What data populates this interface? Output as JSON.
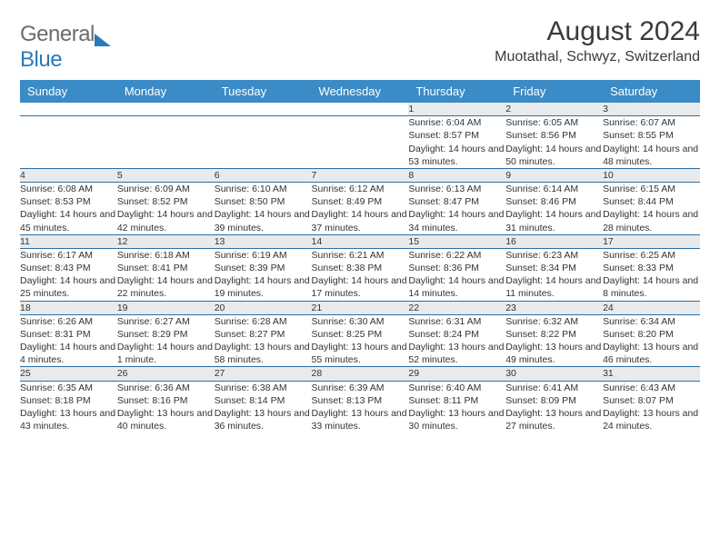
{
  "brand": {
    "part1": "General",
    "part2": "Blue"
  },
  "title": "August 2024",
  "subtitle": "Muotathal, Schwyz, Switzerland",
  "weekdays": [
    "Sunday",
    "Monday",
    "Tuesday",
    "Wednesday",
    "Thursday",
    "Friday",
    "Saturday"
  ],
  "colors": {
    "header_bg": "#3b8bc6",
    "header_text": "#ffffff",
    "daynum_bg": "#e9eaeb",
    "cell_border": "#2a6fa3",
    "body_text": "#333333",
    "title_text": "#3a3a3a",
    "logo_gray": "#6b6b6b",
    "logo_blue": "#2a7ab8",
    "background": "#ffffff"
  },
  "typography": {
    "title_fontsize": 30,
    "subtitle_fontsize": 16,
    "weekday_fontsize": 13,
    "daynum_fontsize": 12,
    "cell_fontsize": 10.5,
    "logo_fontsize": 24
  },
  "layout": {
    "columns": 7,
    "rows": 5,
    "first_day_column": 4
  },
  "days": [
    {
      "n": 1,
      "sunrise": "6:04 AM",
      "sunset": "8:57 PM",
      "daylight": "14 hours and 53 minutes."
    },
    {
      "n": 2,
      "sunrise": "6:05 AM",
      "sunset": "8:56 PM",
      "daylight": "14 hours and 50 minutes."
    },
    {
      "n": 3,
      "sunrise": "6:07 AM",
      "sunset": "8:55 PM",
      "daylight": "14 hours and 48 minutes."
    },
    {
      "n": 4,
      "sunrise": "6:08 AM",
      "sunset": "8:53 PM",
      "daylight": "14 hours and 45 minutes."
    },
    {
      "n": 5,
      "sunrise": "6:09 AM",
      "sunset": "8:52 PM",
      "daylight": "14 hours and 42 minutes."
    },
    {
      "n": 6,
      "sunrise": "6:10 AM",
      "sunset": "8:50 PM",
      "daylight": "14 hours and 39 minutes."
    },
    {
      "n": 7,
      "sunrise": "6:12 AM",
      "sunset": "8:49 PM",
      "daylight": "14 hours and 37 minutes."
    },
    {
      "n": 8,
      "sunrise": "6:13 AM",
      "sunset": "8:47 PM",
      "daylight": "14 hours and 34 minutes."
    },
    {
      "n": 9,
      "sunrise": "6:14 AM",
      "sunset": "8:46 PM",
      "daylight": "14 hours and 31 minutes."
    },
    {
      "n": 10,
      "sunrise": "6:15 AM",
      "sunset": "8:44 PM",
      "daylight": "14 hours and 28 minutes."
    },
    {
      "n": 11,
      "sunrise": "6:17 AM",
      "sunset": "8:43 PM",
      "daylight": "14 hours and 25 minutes."
    },
    {
      "n": 12,
      "sunrise": "6:18 AM",
      "sunset": "8:41 PM",
      "daylight": "14 hours and 22 minutes."
    },
    {
      "n": 13,
      "sunrise": "6:19 AM",
      "sunset": "8:39 PM",
      "daylight": "14 hours and 19 minutes."
    },
    {
      "n": 14,
      "sunrise": "6:21 AM",
      "sunset": "8:38 PM",
      "daylight": "14 hours and 17 minutes."
    },
    {
      "n": 15,
      "sunrise": "6:22 AM",
      "sunset": "8:36 PM",
      "daylight": "14 hours and 14 minutes."
    },
    {
      "n": 16,
      "sunrise": "6:23 AM",
      "sunset": "8:34 PM",
      "daylight": "14 hours and 11 minutes."
    },
    {
      "n": 17,
      "sunrise": "6:25 AM",
      "sunset": "8:33 PM",
      "daylight": "14 hours and 8 minutes."
    },
    {
      "n": 18,
      "sunrise": "6:26 AM",
      "sunset": "8:31 PM",
      "daylight": "14 hours and 4 minutes."
    },
    {
      "n": 19,
      "sunrise": "6:27 AM",
      "sunset": "8:29 PM",
      "daylight": "14 hours and 1 minute."
    },
    {
      "n": 20,
      "sunrise": "6:28 AM",
      "sunset": "8:27 PM",
      "daylight": "13 hours and 58 minutes."
    },
    {
      "n": 21,
      "sunrise": "6:30 AM",
      "sunset": "8:25 PM",
      "daylight": "13 hours and 55 minutes."
    },
    {
      "n": 22,
      "sunrise": "6:31 AM",
      "sunset": "8:24 PM",
      "daylight": "13 hours and 52 minutes."
    },
    {
      "n": 23,
      "sunrise": "6:32 AM",
      "sunset": "8:22 PM",
      "daylight": "13 hours and 49 minutes."
    },
    {
      "n": 24,
      "sunrise": "6:34 AM",
      "sunset": "8:20 PM",
      "daylight": "13 hours and 46 minutes."
    },
    {
      "n": 25,
      "sunrise": "6:35 AM",
      "sunset": "8:18 PM",
      "daylight": "13 hours and 43 minutes."
    },
    {
      "n": 26,
      "sunrise": "6:36 AM",
      "sunset": "8:16 PM",
      "daylight": "13 hours and 40 minutes."
    },
    {
      "n": 27,
      "sunrise": "6:38 AM",
      "sunset": "8:14 PM",
      "daylight": "13 hours and 36 minutes."
    },
    {
      "n": 28,
      "sunrise": "6:39 AM",
      "sunset": "8:13 PM",
      "daylight": "13 hours and 33 minutes."
    },
    {
      "n": 29,
      "sunrise": "6:40 AM",
      "sunset": "8:11 PM",
      "daylight": "13 hours and 30 minutes."
    },
    {
      "n": 30,
      "sunrise": "6:41 AM",
      "sunset": "8:09 PM",
      "daylight": "13 hours and 27 minutes."
    },
    {
      "n": 31,
      "sunrise": "6:43 AM",
      "sunset": "8:07 PM",
      "daylight": "13 hours and 24 minutes."
    }
  ],
  "labels": {
    "sunrise": "Sunrise:",
    "sunset": "Sunset:",
    "daylight": "Daylight:"
  }
}
